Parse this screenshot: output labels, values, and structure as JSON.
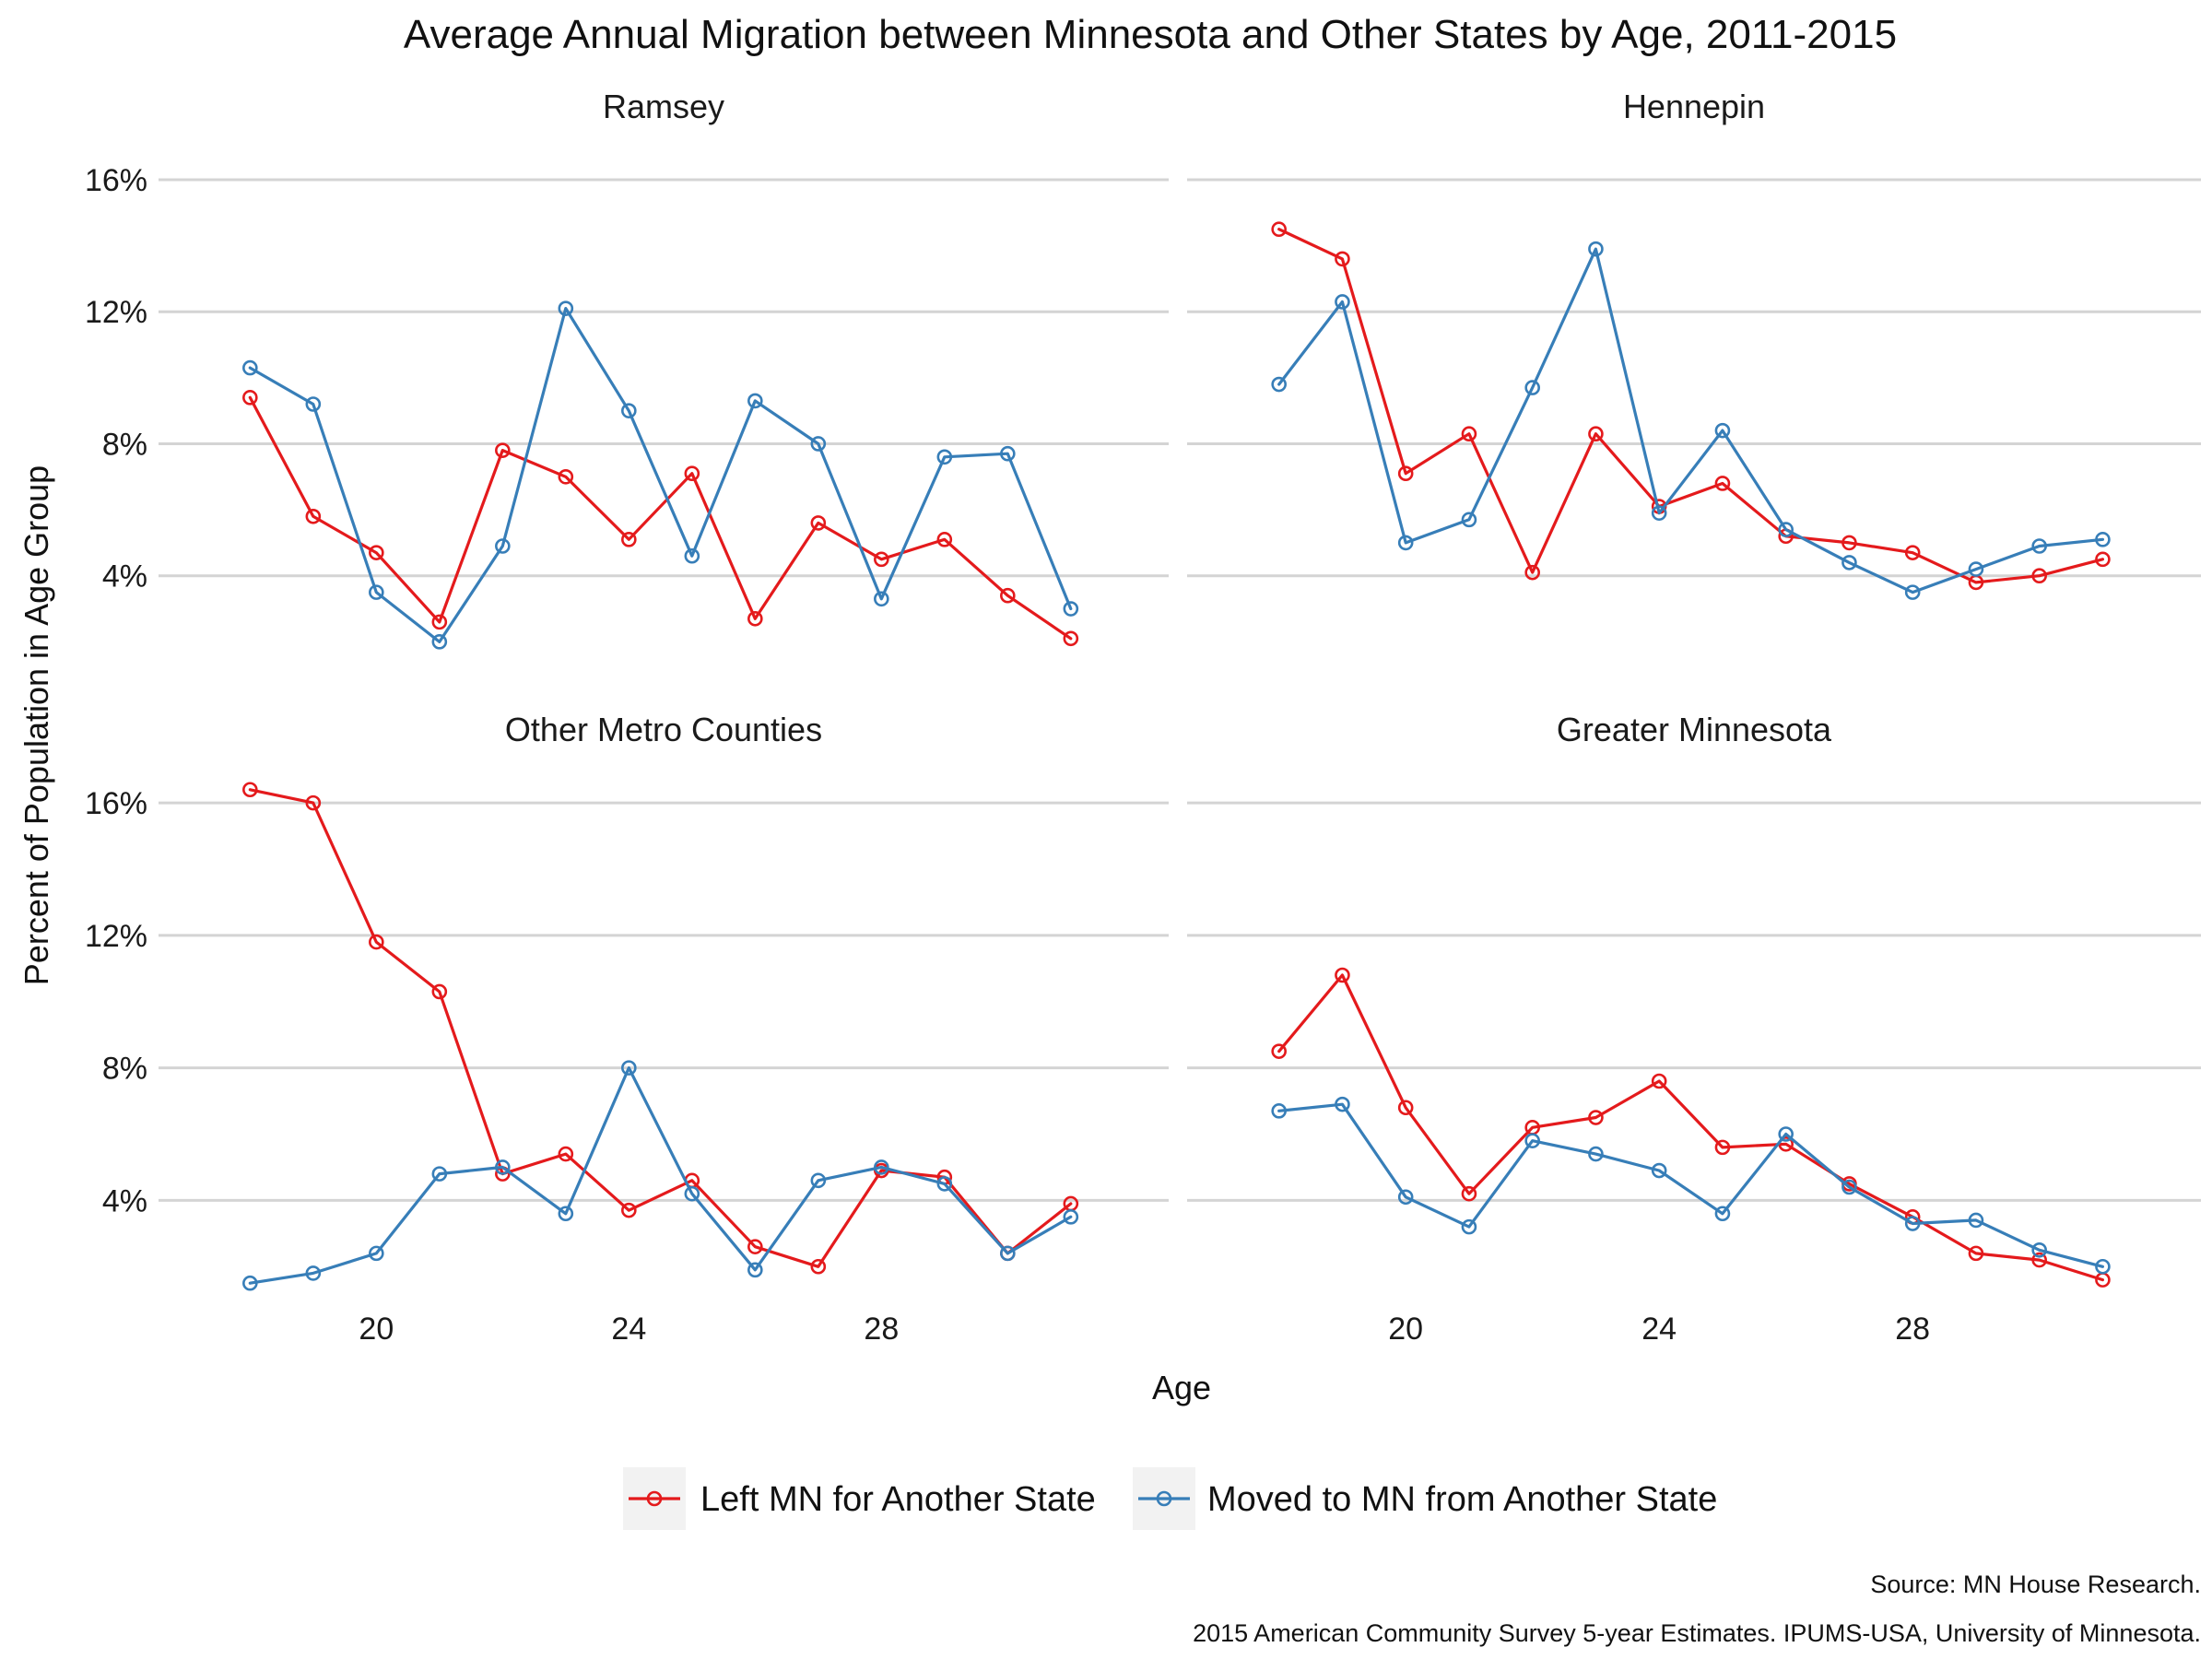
{
  "chart_data": {
    "type": "line",
    "title": "Average Annual Migration between Minnesota and Other States by Age, 2011-2015",
    "xlabel": "Age",
    "ylabel": "Percent of Population in Age Group",
    "x_ticks": [
      20,
      24,
      28
    ],
    "y_ticks": [
      4,
      8,
      12,
      16
    ],
    "y_tick_labels": [
      "4%",
      "8%",
      "12%",
      "16%"
    ],
    "xlim": [
      16.55,
      32.55
    ],
    "ylim": [
      1.2,
      17.2
    ],
    "grid": true,
    "legend_position": "bottom",
    "x": [
      18,
      19,
      20,
      21,
      22,
      23,
      24,
      25,
      26,
      27,
      28,
      29,
      30,
      31
    ],
    "series_names": [
      "Left MN for Another State",
      "Moved to MN from Another State"
    ],
    "colors": {
      "Left MN for Another State": "#e41a1c",
      "Moved to MN from Another State": "#377eb8"
    },
    "panels": [
      {
        "title": "Ramsey",
        "series": [
          {
            "name": "Left MN for Another State",
            "values": [
              9.4,
              5.8,
              4.7,
              2.6,
              7.8,
              7.0,
              5.1,
              7.1,
              2.7,
              5.6,
              4.5,
              5.1,
              3.4,
              2.1
            ]
          },
          {
            "name": "Moved to MN from Another State",
            "values": [
              10.3,
              9.2,
              3.5,
              2.0,
              4.9,
              12.1,
              9.0,
              4.6,
              9.3,
              8.0,
              3.3,
              7.6,
              7.7,
              3.0
            ]
          }
        ]
      },
      {
        "title": "Hennepin",
        "series": [
          {
            "name": "Left MN for Another State",
            "values": [
              14.5,
              13.6,
              7.1,
              8.3,
              4.1,
              8.3,
              6.1,
              6.8,
              5.2,
              5.0,
              4.7,
              3.8,
              4.0,
              4.5
            ]
          },
          {
            "name": "Moved to MN from Another State",
            "values": [
              9.8,
              12.3,
              5.0,
              5.7,
              9.7,
              13.9,
              5.9,
              8.4,
              5.4,
              4.4,
              3.5,
              4.2,
              4.9,
              5.1
            ]
          }
        ]
      },
      {
        "title": "Other Metro Counties",
        "series": [
          {
            "name": "Left MN for Another State",
            "values": [
              16.4,
              16.0,
              11.8,
              10.3,
              4.8,
              5.4,
              3.7,
              4.6,
              2.6,
              2.0,
              4.9,
              4.7,
              2.4,
              3.9
            ]
          },
          {
            "name": "Moved to MN from Another State",
            "values": [
              1.5,
              1.8,
              2.4,
              4.8,
              5.0,
              3.6,
              8.0,
              4.2,
              1.9,
              4.6,
              5.0,
              4.5,
              2.4,
              3.5
            ]
          }
        ]
      },
      {
        "title": "Greater Minnesota",
        "series": [
          {
            "name": "Left MN for Another State",
            "values": [
              8.5,
              10.8,
              6.8,
              4.2,
              6.2,
              6.5,
              7.6,
              5.6,
              5.7,
              4.5,
              3.5,
              2.4,
              2.2,
              1.6
            ]
          },
          {
            "name": "Moved to MN from Another State",
            "values": [
              6.7,
              6.9,
              4.1,
              3.2,
              5.8,
              5.4,
              4.9,
              3.6,
              6.0,
              4.4,
              3.3,
              3.4,
              2.5,
              2.0
            ]
          }
        ]
      }
    ],
    "caption": [
      "Source: MN House Research.",
      "2015 American Community Survey 5-year Estimates. IPUMS-USA, University of Minnesota."
    ]
  }
}
